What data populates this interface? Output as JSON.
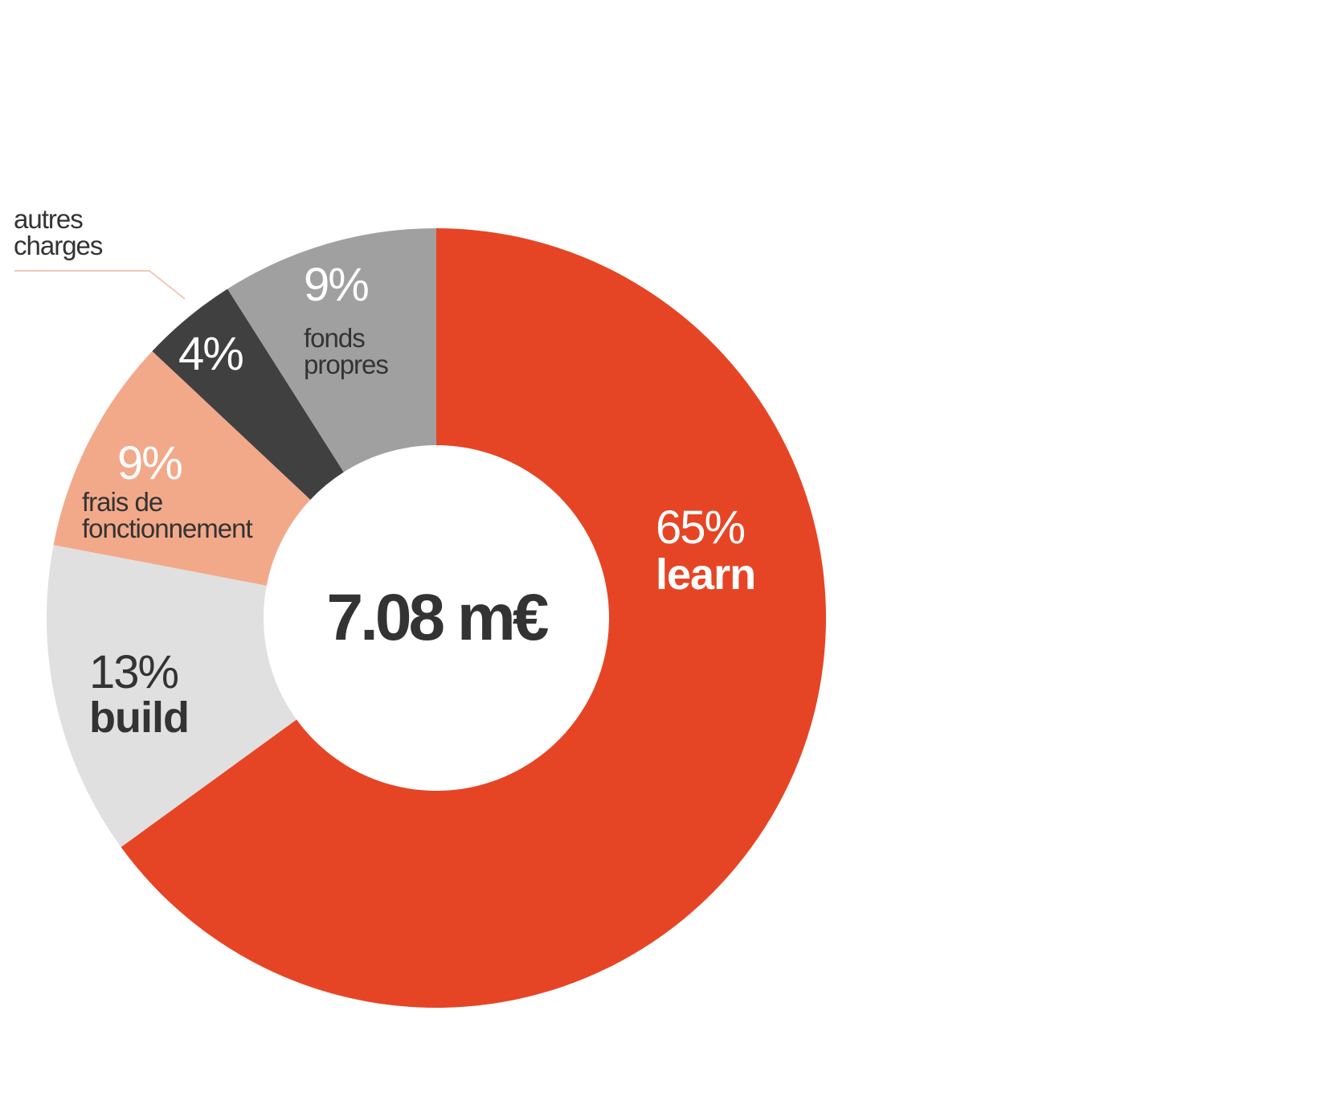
{
  "chart_data": {
    "type": "donut",
    "center_label": "7.08 m€",
    "categories": [
      "learn",
      "build",
      "frais de fonctionnement",
      "autres charges",
      "fonds propres"
    ],
    "values": [
      65,
      13,
      9,
      4,
      9
    ],
    "value_labels": [
      "65%",
      "13%",
      "9%",
      "4%",
      "9%"
    ],
    "colors": [
      "#e64525",
      "#e0e0e0",
      "#f2a98a",
      "#404040",
      "#a0a0a0"
    ]
  }
}
